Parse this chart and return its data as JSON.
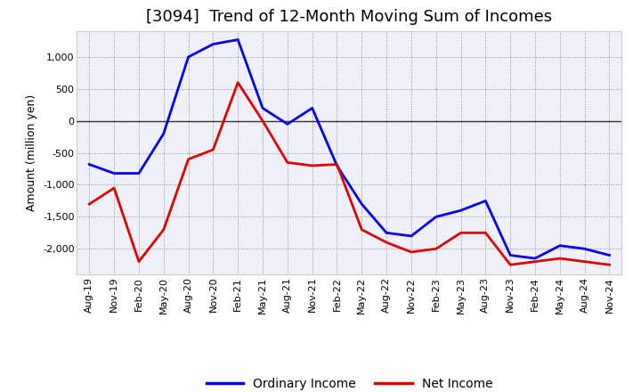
{
  "title": "[3094]  Trend of 12-Month Moving Sum of Incomes",
  "ylabel": "Amount (million yen)",
  "x_labels": [
    "Aug-19",
    "Nov-19",
    "Feb-20",
    "May-20",
    "Aug-20",
    "Nov-20",
    "Feb-21",
    "May-21",
    "Aug-21",
    "Nov-21",
    "Feb-22",
    "May-22",
    "Aug-22",
    "Nov-22",
    "Feb-23",
    "May-23",
    "Aug-23",
    "Nov-23",
    "Feb-24",
    "May-24",
    "Aug-24",
    "Nov-24"
  ],
  "ordinary_income": [
    -680,
    -820,
    -820,
    -200,
    1000,
    1200,
    1270,
    200,
    -50,
    200,
    -700,
    -1300,
    -1750,
    -1800,
    -1500,
    -1400,
    -1250,
    -2100,
    -2150,
    -1950,
    -2000,
    -2100
  ],
  "net_income": [
    -1300,
    -1050,
    -2200,
    -1700,
    -600,
    -450,
    600,
    0,
    -650,
    -700,
    -680,
    -1700,
    -1900,
    -2050,
    -2000,
    -1750,
    -1750,
    -2250,
    -2200,
    -2150,
    -2200,
    -2250
  ],
  "ordinary_color": "#0000ee",
  "net_color": "#dd0000",
  "ylim": [
    -2400,
    1400
  ],
  "yticks": [
    -2000,
    -1500,
    -1000,
    -500,
    0,
    500,
    1000
  ],
  "background_color": "#ffffff",
  "plot_bg_color": "#f0f0f8",
  "grid_color": "#aaaaaa",
  "title_fontsize": 13,
  "axis_fontsize": 9,
  "tick_fontsize": 8,
  "legend_fontsize": 10,
  "line_width": 2.0
}
